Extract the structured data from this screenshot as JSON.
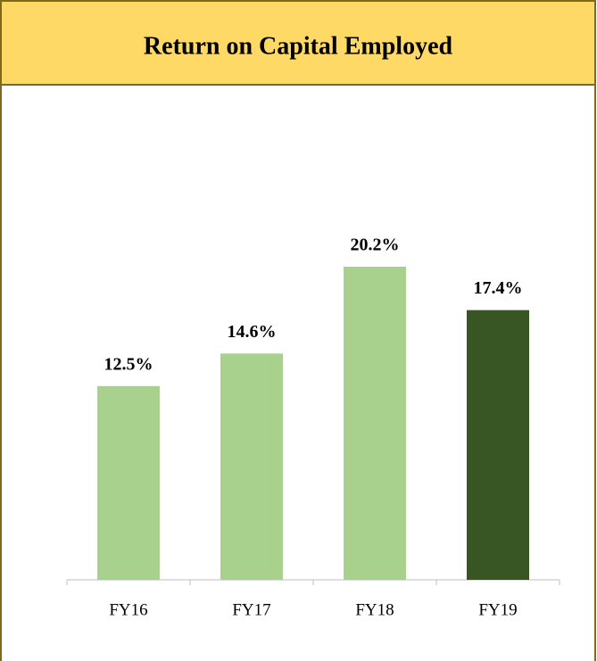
{
  "chart_data": {
    "type": "bar",
    "title": "Return on Capital Employed",
    "categories": [
      "FY16",
      "FY17",
      "FY18",
      "FY19"
    ],
    "values": [
      12.5,
      14.6,
      20.2,
      17.4
    ],
    "value_labels": [
      "12.5%",
      "14.6%",
      "20.2%",
      "17.4%"
    ],
    "colors": [
      "#a9d18e",
      "#a9d18e",
      "#a9d18e",
      "#375623"
    ]
  }
}
